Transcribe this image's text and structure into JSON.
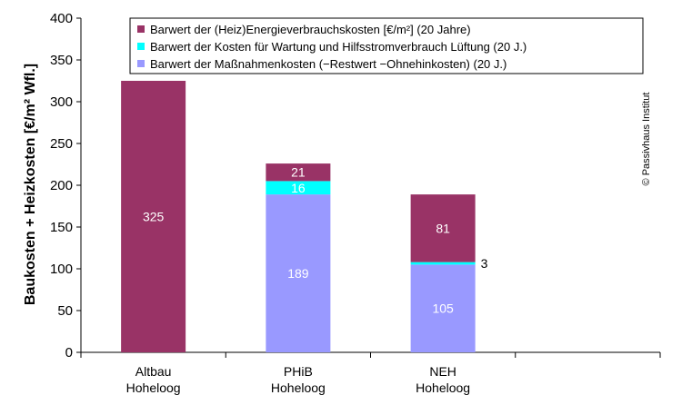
{
  "chart_data": {
    "type": "bar",
    "stacked": true,
    "categories": [
      [
        "Altbau",
        "Hoheloog"
      ],
      [
        "PHiB",
        "Hoheloog"
      ],
      [
        "NEH",
        "Hoheloog"
      ],
      [
        "",
        ""
      ]
    ],
    "series": [
      {
        "name": "Barwert der Maßnahmenkosten (−Restwert −Ohnehinkosten)  (20 J.)",
        "color": "#9999ff",
        "values": [
          0,
          189,
          105,
          null
        ],
        "labels": [
          "",
          "189",
          "105",
          ""
        ]
      },
      {
        "name": "Barwert der Kosten für Wartung und Hilfsstromverbrauch Lüftung (20 J.)",
        "color": "#00ffff",
        "values": [
          0,
          16,
          3,
          null
        ],
        "labels": [
          "",
          "16",
          "3",
          ""
        ]
      },
      {
        "name": "Barwert der (Heiz)Energieverbrauchskosten [€/m²]  (20 Jahre)",
        "color": "#993366",
        "values": [
          325,
          21,
          81,
          null
        ],
        "labels": [
          "325",
          "21",
          "81",
          ""
        ]
      }
    ],
    "legend_order": [
      2,
      1,
      0
    ],
    "ylabel": "Baukosten + Heizkosten [€/m² Wfl.]",
    "yticks": [
      "0",
      "50",
      "100",
      "150",
      "200",
      "250",
      "300",
      "350",
      "400"
    ],
    "ylim": [
      0,
      400
    ],
    "ystep": 50,
    "grid": false,
    "legend_position": "top-right",
    "credit": "© Passivhaus Institut"
  }
}
